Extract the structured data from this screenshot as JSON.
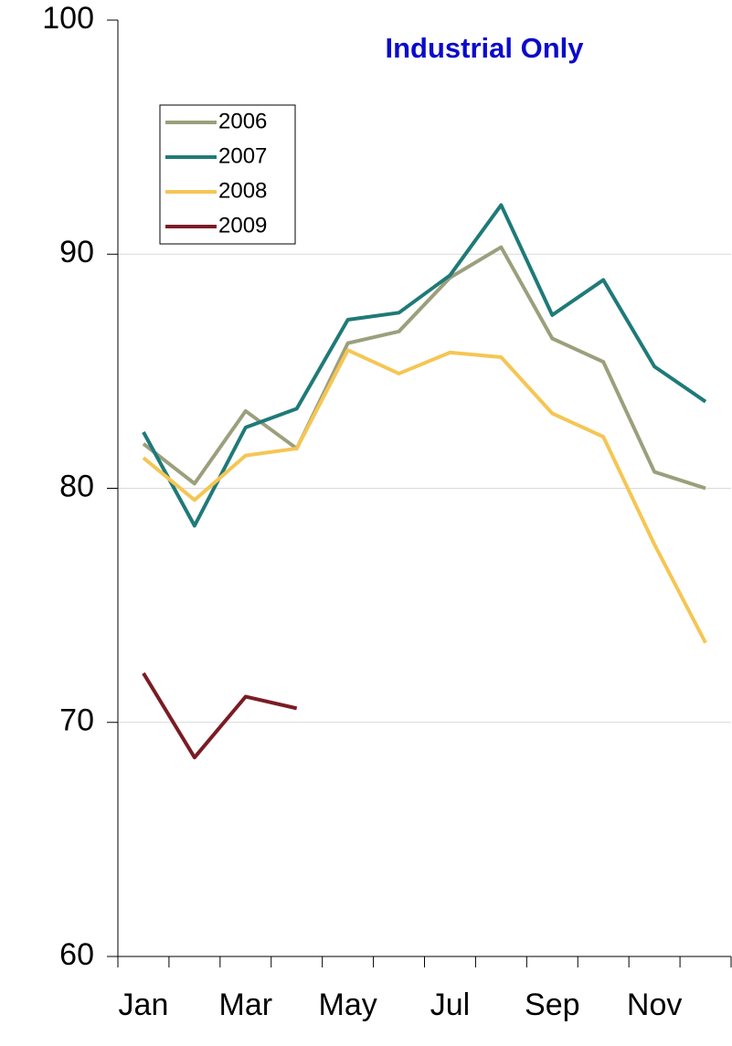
{
  "chart_data": {
    "type": "line",
    "title": "Industrial Only",
    "categories": [
      "Jan",
      null,
      "Mar",
      null,
      "May",
      null,
      "Jul",
      null,
      "Sep",
      null,
      "Nov",
      null
    ],
    "series": [
      {
        "name": "2006",
        "color": "#9c9f7c",
        "values": [
          81.9,
          80.2,
          83.3,
          81.7,
          86.2,
          86.7,
          89.0,
          90.3,
          86.4,
          85.4,
          80.7,
          80.0
        ]
      },
      {
        "name": "2007",
        "color": "#1f7a78",
        "values": [
          82.4,
          78.4,
          82.6,
          83.4,
          87.2,
          87.5,
          89.1,
          92.1,
          87.4,
          88.9,
          85.2,
          83.7
        ]
      },
      {
        "name": "2008",
        "color": "#f5c654",
        "values": [
          81.3,
          79.5,
          81.4,
          81.7,
          85.9,
          84.9,
          85.8,
          85.6,
          83.2,
          82.2,
          77.6,
          73.4
        ]
      },
      {
        "name": "2009",
        "color": "#7a1c24",
        "values": [
          72.1,
          68.5,
          71.1,
          70.6,
          null,
          null,
          null,
          null,
          null,
          null,
          null,
          null
        ]
      }
    ],
    "ylim": [
      60,
      100
    ],
    "yticks": [
      60,
      70,
      80,
      90,
      100
    ],
    "grid": true,
    "legend": "upper-left"
  }
}
